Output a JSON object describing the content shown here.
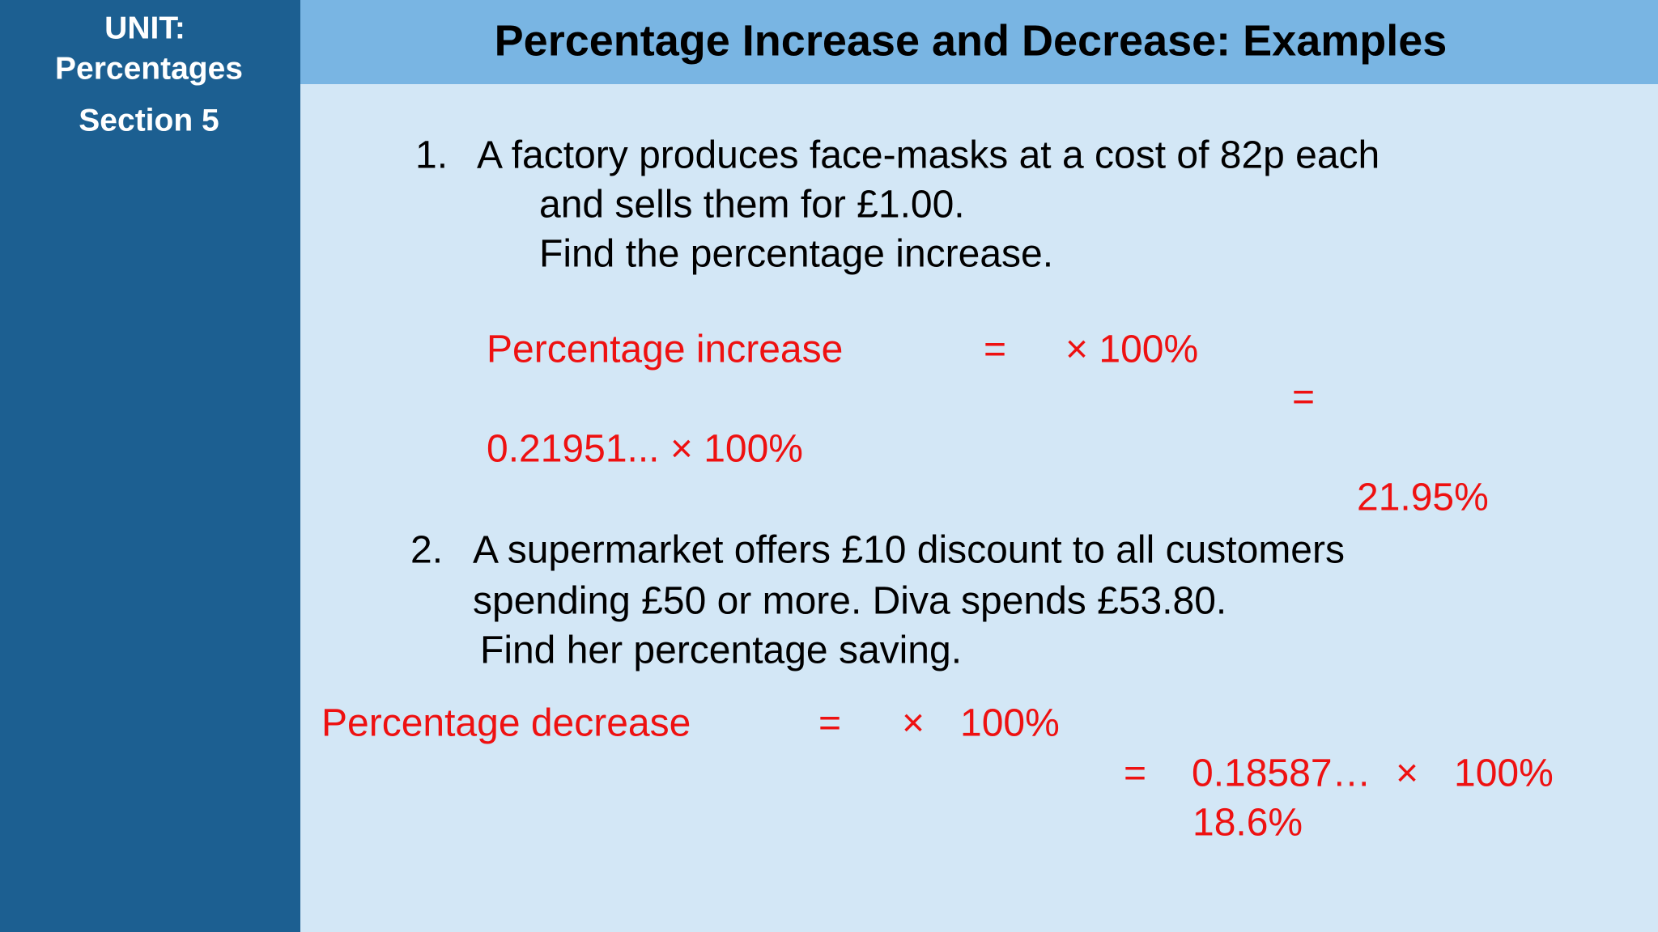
{
  "sidebar": {
    "unit": "UNIT:",
    "topic": "Percentages",
    "section": "Section 5"
  },
  "header": {
    "title": "Percentage Increase and Decrease: Examples"
  },
  "examples": [
    {
      "number": "1.",
      "question": [
        "A factory produces face-masks at a cost of 82p each",
        "and sells them for £1.00.",
        "Find the percentage increase."
      ],
      "working": {
        "label": "Percentage increase",
        "eq1": "=",
        "times1": "× 100%",
        "eq2": "=",
        "step": "0.21951... ×  100%",
        "answer": "21.95%"
      }
    },
    {
      "number": "2.",
      "question": [
        "A supermarket offers £10 discount to all customers",
        "spending £50 or more. Diva spends £53.80.",
        "Find her percentage saving."
      ],
      "working": {
        "label": "Percentage decrease",
        "eq1": "=",
        "times": "×",
        "hundred": "100%",
        "eq2": "=",
        "step": "0.18587…",
        "times2": "×",
        "hundred2": "100%",
        "answer": "18.6%"
      }
    }
  ]
}
